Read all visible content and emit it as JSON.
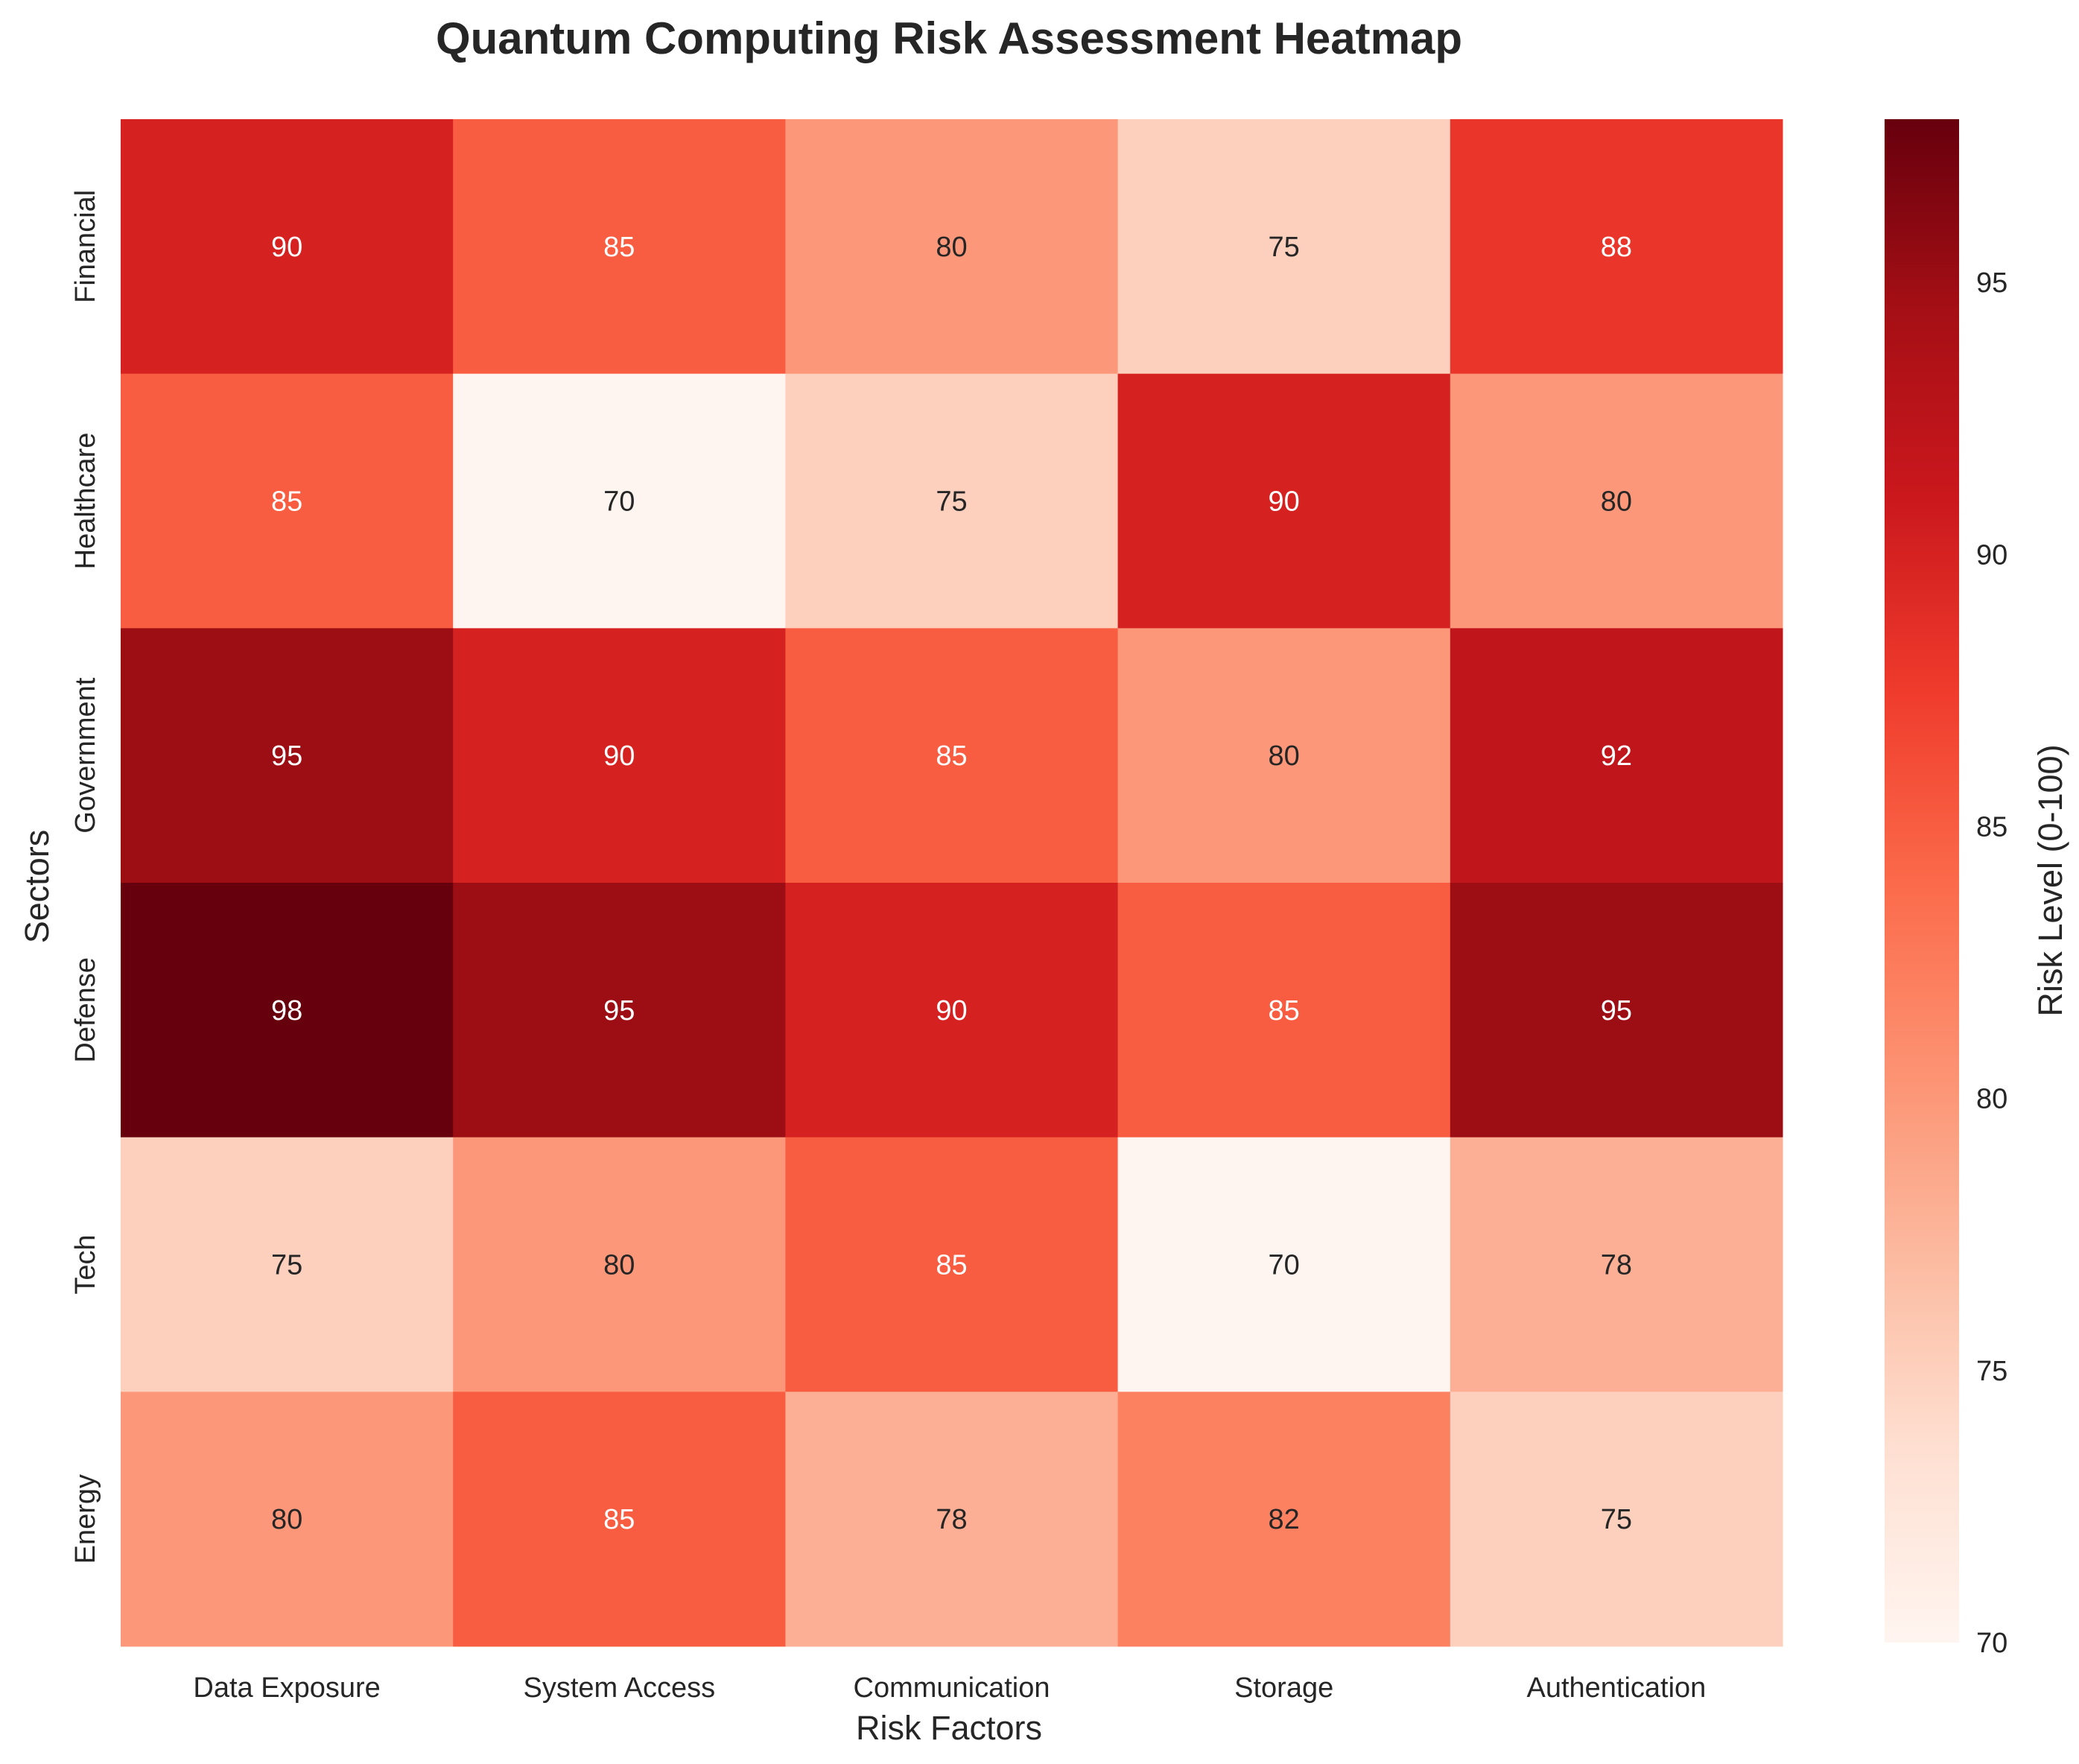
{
  "chart_data": {
    "type": "heatmap",
    "title": "Quantum Computing Risk Assessment Heatmap",
    "xlabel": "Risk Factors",
    "ylabel": "Sectors",
    "x_categories": [
      "Data Exposure",
      "System Access",
      "Communication",
      "Storage",
      "Authentication"
    ],
    "y_categories": [
      "Financial",
      "Healthcare",
      "Government",
      "Defense",
      "Tech",
      "Energy"
    ],
    "values": [
      [
        90,
        85,
        80,
        75,
        88
      ],
      [
        85,
        70,
        75,
        90,
        80
      ],
      [
        95,
        90,
        85,
        80,
        92
      ],
      [
        98,
        95,
        90,
        85,
        95
      ],
      [
        75,
        80,
        85,
        70,
        78
      ],
      [
        80,
        85,
        78,
        82,
        75
      ]
    ],
    "colorbar": {
      "label": "Risk Level (0-100)",
      "min": 70,
      "max": 98,
      "ticks": [
        70,
        75,
        80,
        85,
        90,
        95
      ]
    },
    "colormap": [
      "#fff5f0",
      "#fee0d2",
      "#fcbba1",
      "#fc9272",
      "#fb6a4a",
      "#ef3b2c",
      "#cb181d",
      "#a50f15",
      "#67000d"
    ],
    "grid": false
  }
}
